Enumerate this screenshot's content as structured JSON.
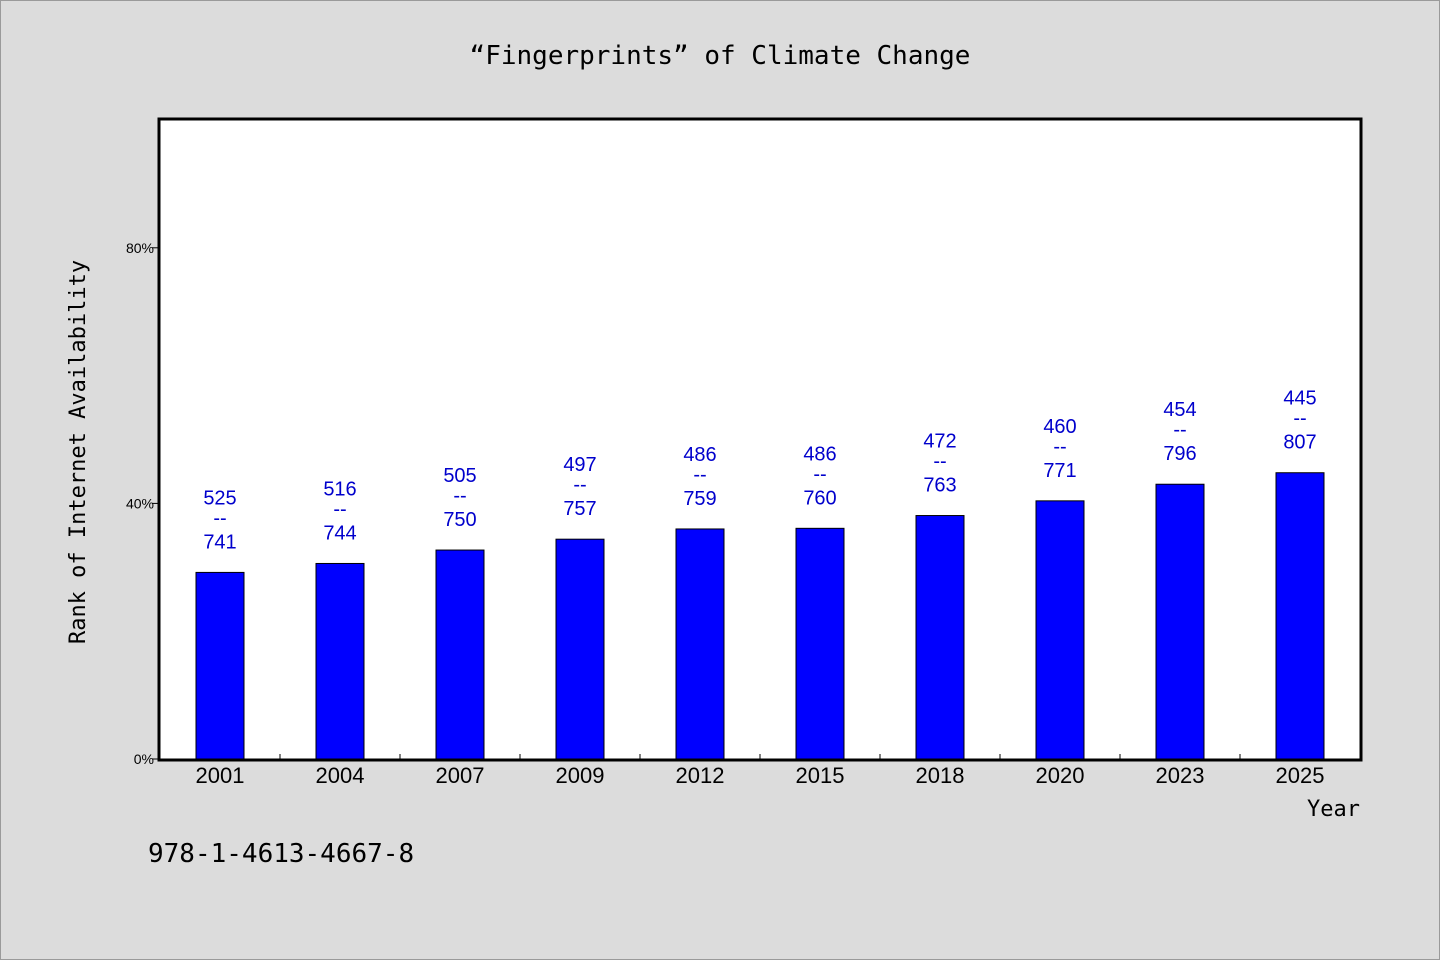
{
  "chart_data": {
    "type": "bar",
    "title": "“Fingerprints” of Climate Change",
    "xlabel": "Year",
    "ylabel": "Rank of Internet Availability",
    "ylim": [
      0,
      1
    ],
    "yticks": [
      {
        "value": 0,
        "label": "0%"
      },
      {
        "value": 0.4,
        "label": "40%"
      },
      {
        "value": 0.8,
        "label": "80%"
      }
    ],
    "categories": [
      "2001",
      "2004",
      "2007",
      "2009",
      "2012",
      "2015",
      "2018",
      "2020",
      "2023",
      "2025"
    ],
    "values": [
      0.292,
      0.306,
      0.327,
      0.344,
      0.36,
      0.361,
      0.381,
      0.404,
      0.43,
      0.448
    ],
    "bar_labels": [
      {
        "top": "525",
        "sep": "--",
        "bottom": "741"
      },
      {
        "top": "516",
        "sep": "--",
        "bottom": "744"
      },
      {
        "top": "505",
        "sep": "--",
        "bottom": "750"
      },
      {
        "top": "497",
        "sep": "--",
        "bottom": "757"
      },
      {
        "top": "486",
        "sep": "--",
        "bottom": "759"
      },
      {
        "top": "486",
        "sep": "--",
        "bottom": "760"
      },
      {
        "top": "472",
        "sep": "--",
        "bottom": "763"
      },
      {
        "top": "460",
        "sep": "--",
        "bottom": "771"
      },
      {
        "top": "454",
        "sep": "--",
        "bottom": "796"
      },
      {
        "top": "445",
        "sep": "--",
        "bottom": "807"
      }
    ],
    "grid": false,
    "bar_color": "#0000ff",
    "label_color": "#0000cc"
  },
  "footer": {
    "isbn": "978-1-4613-4667-8"
  }
}
